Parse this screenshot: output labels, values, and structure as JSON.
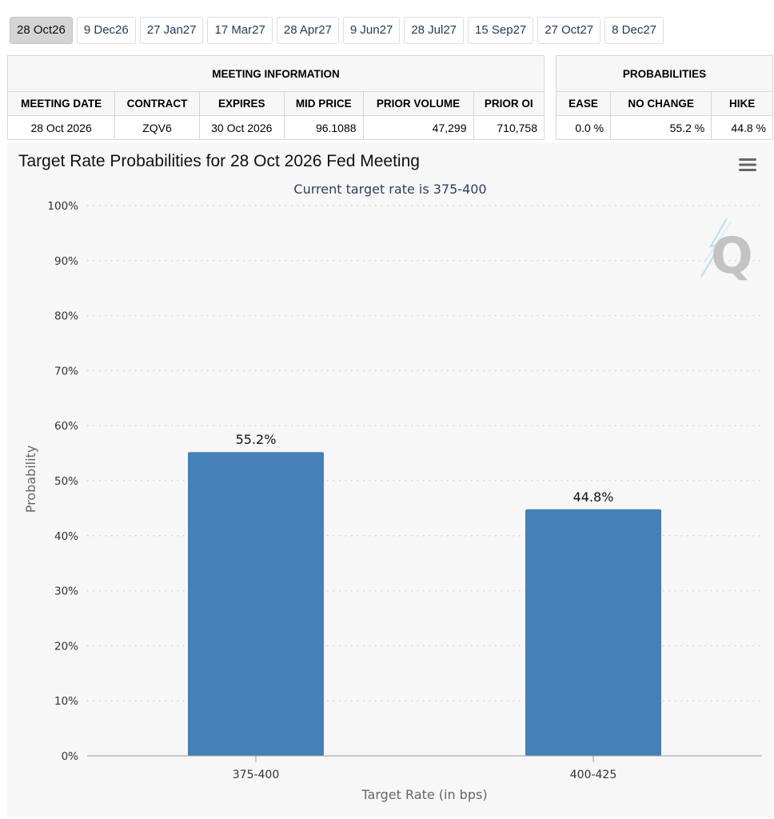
{
  "tabs": [
    {
      "label": "28 Oct26",
      "active": true
    },
    {
      "label": "9 Dec26",
      "active": false
    },
    {
      "label": "27 Jan27",
      "active": false
    },
    {
      "label": "17 Mar27",
      "active": false
    },
    {
      "label": "28 Apr27",
      "active": false
    },
    {
      "label": "9 Jun27",
      "active": false
    },
    {
      "label": "28 Jul27",
      "active": false
    },
    {
      "label": "15 Sep27",
      "active": false
    },
    {
      "label": "27 Oct27",
      "active": false
    },
    {
      "label": "8 Dec27",
      "active": false
    }
  ],
  "meeting_info": {
    "group_title": "MEETING INFORMATION",
    "headers": {
      "meeting_date": "MEETING DATE",
      "contract": "CONTRACT",
      "expires": "EXPIRES",
      "mid_price": "MID PRICE",
      "prior_volume": "PRIOR VOLUME",
      "prior_oi": "PRIOR OI"
    },
    "row": {
      "meeting_date": "28 Oct 2026",
      "contract": "ZQV6",
      "expires": "30 Oct 2026",
      "mid_price": "96.1088",
      "prior_volume": "47,299",
      "prior_oi": "710,758"
    }
  },
  "probabilities": {
    "group_title": "PROBABILITIES",
    "headers": {
      "ease": "EASE",
      "no_change": "NO CHANGE",
      "hike": "HIKE"
    },
    "row": {
      "ease": "0.0 %",
      "no_change": "55.2 %",
      "hike": "44.8 %"
    }
  },
  "chart_data": {
    "type": "bar",
    "title": "Target Rate Probabilities for 28 Oct 2026 Fed Meeting",
    "subtitle": "Current target rate is 375-400",
    "xlabel": "Target Rate (in bps)",
    "ylabel": "Probability",
    "categories": [
      "375-400",
      "400-425"
    ],
    "values": [
      55.2,
      44.8
    ],
    "data_labels": [
      "55.2%",
      "44.8%"
    ],
    "ylim": [
      0,
      100
    ],
    "yticks": [
      0,
      10,
      20,
      30,
      40,
      50,
      60,
      70,
      80,
      90,
      100
    ],
    "ytick_labels": [
      "0%",
      "10%",
      "20%",
      "30%",
      "40%",
      "50%",
      "60%",
      "70%",
      "80%",
      "90%",
      "100%"
    ],
    "grid": true,
    "legend": "none",
    "bar_color": "#4580b9"
  },
  "colors": {
    "tab_active_bg": "#d4d4d4",
    "chart_bg": "#f7f7f7",
    "subtitle": "#2e3f66"
  },
  "icons": {
    "menu": "hamburger-menu-icon",
    "watermark": "quikstrike-q-logo"
  }
}
